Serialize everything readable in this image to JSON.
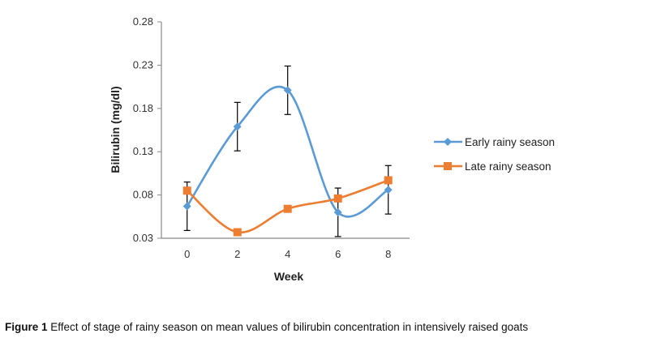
{
  "chart_data": {
    "type": "line",
    "title": "",
    "xlabel": "Week",
    "ylabel": "Bilirubin (mg/dl)",
    "x": [
      0,
      2,
      4,
      6,
      8
    ],
    "xticks": [
      "0",
      "2",
      "4",
      "6",
      "8"
    ],
    "yticks": [
      "0.03",
      "0.08",
      "0.13",
      "0.18",
      "0.23",
      "0.28"
    ],
    "ylim": [
      0.03,
      0.28
    ],
    "grid": false,
    "legend_position": "right",
    "smooth": true,
    "series": [
      {
        "name": "Early rainy season",
        "color": "#5B9BD5",
        "marker": "diamond",
        "values": [
          0.067,
          0.159,
          0.201,
          0.06,
          0.086
        ],
        "error": [
          0.028,
          0.028,
          0.028,
          0.028,
          0.028
        ]
      },
      {
        "name": "Late rainy season",
        "color": "#ED7D31",
        "marker": "square",
        "values": [
          0.085,
          0.037,
          0.064,
          0.076,
          0.097
        ]
      }
    ]
  },
  "caption": {
    "label": "Figure 1",
    "text": " Effect of stage of rainy season on mean values of bilirubin concentration in intensively raised goats"
  }
}
